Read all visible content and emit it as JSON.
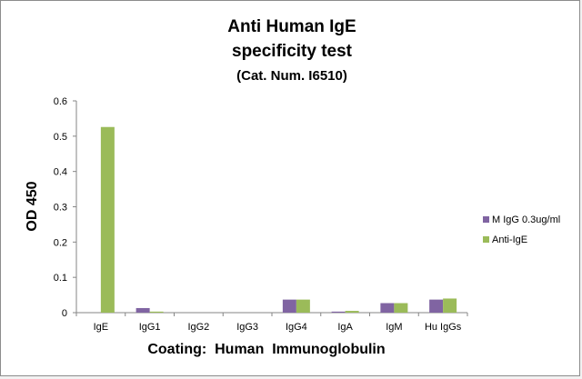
{
  "chart_data": {
    "type": "bar",
    "title_lines": [
      "Anti Human IgE",
      "specificity test",
      "(Cat. Num. I6510)"
    ],
    "xlabel": "Coating:  Human  Immunoglobulin",
    "ylabel": "OD 450",
    "categories": [
      "IgE",
      "IgG1",
      "IgG2",
      "IgG3",
      "IgG4",
      "IgA",
      "IgM",
      "Hu IgGs"
    ],
    "series": [
      {
        "name": "M IgG 0.3ug/ml",
        "color": "#8064a2",
        "values": [
          0,
          0.013,
          0,
          0,
          0.037,
          0.003,
          0.027,
          0.037
        ]
      },
      {
        "name": "Anti-IgE",
        "color": "#9bbb59",
        "values": [
          0.526,
          0.003,
          0,
          0,
          0.037,
          0.005,
          0.027,
          0.04
        ]
      }
    ],
    "ylim": [
      0,
      0.6
    ],
    "yticks": [
      "0",
      "0.1",
      "0.2",
      "0.3",
      "0.4",
      "0.5",
      "0.6"
    ],
    "ytick_values": [
      0,
      0.1,
      0.2,
      0.3,
      0.4,
      0.5,
      0.6
    ],
    "grid": false,
    "legend_position": "right"
  }
}
